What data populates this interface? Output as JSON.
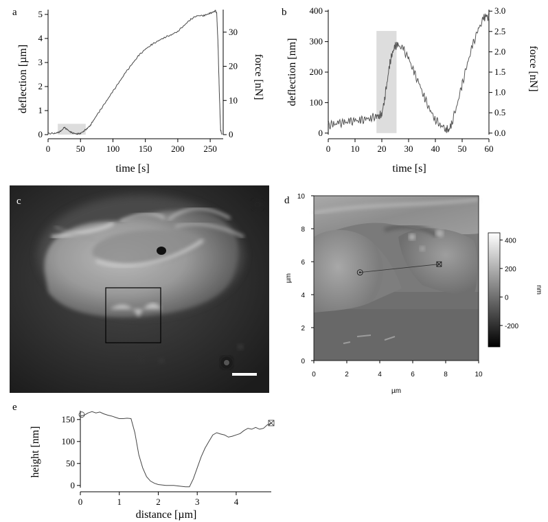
{
  "panel_letters": {
    "a": "a",
    "b": "b",
    "c": "c",
    "d": "d",
    "e": "e"
  },
  "chart_data": [
    {
      "id": "a",
      "type": "line",
      "xlabel": "time [s]",
      "ylabel": "deflection [µm]",
      "y2label": "force [nN]",
      "xlim": [
        0,
        270
      ],
      "ylim": [
        0,
        5.2
      ],
      "y2lim": [
        0,
        36.6
      ],
      "xticks": [
        0,
        50,
        100,
        150,
        200,
        250
      ],
      "yticks": [
        0,
        1,
        2,
        3,
        4,
        5
      ],
      "y2ticks": [
        0,
        10,
        20,
        30
      ],
      "highlight": {
        "x": [
          15,
          58
        ],
        "y": [
          0,
          0.45
        ]
      },
      "series": [
        {
          "x": [
            0,
            10,
            15,
            20,
            25,
            30,
            35,
            40,
            45,
            50,
            55,
            60,
            65,
            70,
            80,
            90,
            100,
            110,
            120,
            130,
            140,
            150,
            160,
            170,
            180,
            190,
            200,
            210,
            220,
            230,
            240,
            245,
            250,
            255,
            258,
            260,
            262,
            264,
            266,
            268
          ],
          "values": [
            0.05,
            0.05,
            0.08,
            0.15,
            0.3,
            0.2,
            0.1,
            0.05,
            0.03,
            0.05,
            0.15,
            0.25,
            0.38,
            0.6,
            1.0,
            1.4,
            1.8,
            2.2,
            2.6,
            2.95,
            3.3,
            3.55,
            3.75,
            3.9,
            4.05,
            4.15,
            4.3,
            4.55,
            4.8,
            4.95,
            4.95,
            5.0,
            5.05,
            5.1,
            5.15,
            5.05,
            3.8,
            1.8,
            0.2,
            0.0
          ]
        }
      ]
    },
    {
      "id": "b",
      "type": "line",
      "xlabel": "time [s]",
      "ylabel": "deflection [nm]",
      "y2label": "force [nN]",
      "xlim": [
        0,
        60
      ],
      "ylim": [
        -5,
        405
      ],
      "y2lim": [
        -0.0375,
        3.0375
      ],
      "xticks": [
        0,
        10,
        20,
        30,
        40,
        50,
        60
      ],
      "yticks": [
        0,
        100,
        200,
        300,
        400
      ],
      "y2ticks": [
        "0.0",
        "0.5",
        "1.0",
        "1.5",
        "2.0",
        "2.5",
        "3.0"
      ],
      "highlight": {
        "x": [
          18,
          25.5
        ],
        "y": [
          0,
          335
        ]
      },
      "series": [
        {
          "x": [
            0,
            2,
            4,
            6,
            8,
            10,
            12,
            14,
            16,
            18,
            19,
            20,
            21,
            22,
            23,
            24,
            25,
            26,
            28,
            30,
            32,
            34,
            36,
            38,
            40,
            42,
            44,
            45,
            46,
            48,
            50,
            52,
            54,
            56,
            58,
            59,
            60
          ],
          "values": [
            25,
            30,
            32,
            35,
            38,
            40,
            42,
            45,
            50,
            55,
            58,
            62,
            110,
            170,
            230,
            265,
            285,
            290,
            275,
            245,
            200,
            160,
            115,
            75,
            45,
            25,
            15,
            10,
            30,
            90,
            160,
            230,
            290,
            340,
            375,
            385,
            375
          ]
        }
      ]
    },
    {
      "id": "d",
      "type": "heatmap",
      "xlabel": "µm",
      "ylabel": "µm",
      "colorbar_label": "nm",
      "xlim": [
        0,
        10
      ],
      "ylim": [
        0,
        10
      ],
      "xticks": [
        0,
        2,
        4,
        6,
        8,
        10
      ],
      "yticks": [
        0,
        2,
        4,
        6,
        8,
        10
      ],
      "colorbar_range": [
        -350,
        450
      ],
      "colorbar_ticks": [
        400,
        200,
        0,
        -200
      ],
      "profile_line": {
        "start": [
          2.8,
          5.35
        ],
        "end": [
          7.6,
          5.85
        ]
      }
    },
    {
      "id": "e",
      "type": "line",
      "xlabel": "distance [µm]",
      "ylabel": "height [nm]",
      "xlim": [
        0,
        4.9
      ],
      "ylim": [
        -5,
        170
      ],
      "xticks": [
        0,
        1,
        2,
        3,
        4
      ],
      "yticks": [
        0,
        50,
        100,
        150
      ],
      "series": [
        {
          "x": [
            0,
            0.1,
            0.2,
            0.3,
            0.4,
            0.5,
            0.6,
            0.7,
            0.8,
            0.9,
            1.0,
            1.1,
            1.2,
            1.3,
            1.4,
            1.5,
            1.6,
            1.7,
            1.8,
            1.9,
            2.0,
            2.2,
            2.4,
            2.6,
            2.7,
            2.8,
            2.9,
            3.0,
            3.1,
            3.2,
            3.3,
            3.4,
            3.5,
            3.6,
            3.7,
            3.8,
            3.9,
            4.0,
            4.1,
            4.2,
            4.3,
            4.4,
            4.5,
            4.6,
            4.7,
            4.8,
            4.9
          ],
          "values": [
            158,
            160,
            165,
            168,
            165,
            167,
            163,
            160,
            158,
            155,
            152,
            152,
            153,
            152,
            120,
            70,
            40,
            20,
            10,
            5,
            2,
            0,
            0,
            -2,
            -3,
            -3,
            15,
            40,
            65,
            85,
            100,
            115,
            120,
            117,
            115,
            110,
            112,
            115,
            118,
            125,
            130,
            128,
            132,
            128,
            130,
            138,
            142
          ]
        }
      ]
    }
  ],
  "image_c": {
    "scale_bar": true
  }
}
